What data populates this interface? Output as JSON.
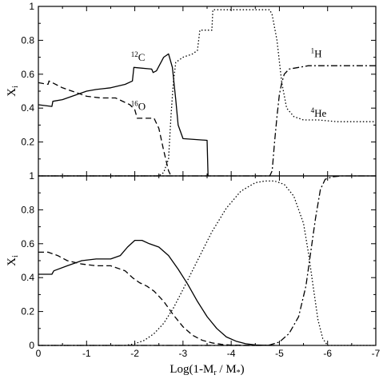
{
  "chart_data": [
    {
      "type": "line",
      "panel": "top",
      "xlim": [
        0,
        -7
      ],
      "ylim": [
        0,
        1
      ],
      "xticks": [
        0,
        -1,
        -2,
        -3,
        -4,
        -5,
        -6,
        -7
      ],
      "yticks": [
        0.2,
        0.4,
        0.6,
        0.8,
        1
      ],
      "ylabel": "X",
      "ylabel_sub": "i",
      "annotations": [
        {
          "sup": "12",
          "text": "C",
          "x": -1.92,
          "y": 0.68
        },
        {
          "sup": "16",
          "text": "O",
          "x": -1.92,
          "y": 0.39
        },
        {
          "sup": "1",
          "text": "H",
          "x": -5.65,
          "y": 0.7
        },
        {
          "sup": "4",
          "text": "He",
          "x": -5.65,
          "y": 0.35
        }
      ],
      "series": [
        {
          "style": "solid",
          "x": [
            0,
            -0.28,
            -0.3,
            -0.5,
            -0.8,
            -1.0,
            -1.2,
            -1.5,
            -1.8,
            -1.95,
            -1.98,
            -2.35,
            -2.38,
            -2.45,
            -2.6,
            -2.7,
            -2.78,
            -2.85,
            -2.9,
            -3.0,
            -3.5,
            -3.52
          ],
          "y": [
            0.42,
            0.41,
            0.44,
            0.45,
            0.48,
            0.5,
            0.51,
            0.52,
            0.54,
            0.56,
            0.64,
            0.63,
            0.61,
            0.62,
            0.7,
            0.72,
            0.64,
            0.45,
            0.3,
            0.22,
            0.21,
            0
          ]
        },
        {
          "style": "dashed",
          "x": [
            0,
            -0.2,
            -0.22,
            -0.5,
            -0.8,
            -1.0,
            -1.3,
            -1.6,
            -1.9,
            -2.0,
            -2.05,
            -2.4,
            -2.5,
            -2.6,
            -2.7,
            -2.75
          ],
          "y": [
            0.55,
            0.54,
            0.56,
            0.52,
            0.49,
            0.47,
            0.46,
            0.46,
            0.42,
            0.39,
            0.34,
            0.34,
            0.28,
            0.15,
            0.03,
            0
          ]
        },
        {
          "style": "dotted",
          "x": [
            0,
            -2.5,
            -2.6,
            -2.7,
            -2.75,
            -2.8,
            -2.85,
            -3.0,
            -3.2,
            -3.3,
            -3.35,
            -3.6,
            -3.62,
            -4.8,
            -4.85,
            -4.95,
            -5.05,
            -5.15,
            -5.3,
            -5.5,
            -5.8,
            -6.2,
            -7.0
          ],
          "y": [
            0,
            0,
            0.02,
            0.1,
            0.35,
            0.55,
            0.67,
            0.7,
            0.72,
            0.74,
            0.86,
            0.86,
            0.98,
            0.98,
            0.95,
            0.8,
            0.55,
            0.4,
            0.35,
            0.33,
            0.33,
            0.32,
            0.32
          ]
        },
        {
          "style": "dashdot",
          "x": [
            0,
            -4.8,
            -4.85,
            -4.9,
            -4.95,
            -5.0,
            -5.05,
            -5.1,
            -5.2,
            -5.4,
            -5.6,
            -6.0,
            -6.5,
            -7.0
          ],
          "y": [
            0,
            0,
            0.03,
            0.2,
            0.35,
            0.48,
            0.55,
            0.6,
            0.63,
            0.64,
            0.65,
            0.65,
            0.65,
            0.65
          ]
        }
      ]
    },
    {
      "type": "line",
      "panel": "bottom",
      "xlim": [
        0,
        -7
      ],
      "ylim": [
        0,
        1
      ],
      "xticks": [
        0,
        -1,
        -2,
        -3,
        -4,
        -5,
        -6,
        -7
      ],
      "yticks": [
        0,
        0.2,
        0.4,
        0.6,
        0.8,
        1
      ],
      "xlabel": "Log(1-M",
      "xlabel_sub1": "r",
      "xlabel_mid": " / M",
      "xlabel_sub2": "*",
      "xlabel_end": ")",
      "ylabel": "X",
      "ylabel_sub": "i",
      "series": [
        {
          "style": "solid",
          "x": [
            0,
            -0.28,
            -0.32,
            -0.6,
            -0.9,
            -1.2,
            -1.5,
            -1.7,
            -1.85,
            -2.0,
            -2.15,
            -2.3,
            -2.5,
            -2.7,
            -2.9,
            -3.1,
            -3.3,
            -3.5,
            -3.7,
            -3.9,
            -4.1,
            -4.3,
            -4.5,
            -4.7,
            -4.9
          ],
          "y": [
            0.42,
            0.42,
            0.44,
            0.47,
            0.5,
            0.51,
            0.51,
            0.53,
            0.58,
            0.62,
            0.62,
            0.6,
            0.58,
            0.53,
            0.45,
            0.36,
            0.26,
            0.17,
            0.1,
            0.05,
            0.025,
            0.01,
            0.003,
            0.001,
            0
          ]
        },
        {
          "style": "dashed",
          "x": [
            0,
            -0.2,
            -0.4,
            -0.6,
            -0.9,
            -1.2,
            -1.5,
            -1.8,
            -1.95,
            -2.1,
            -2.25,
            -2.4,
            -2.6,
            -2.8,
            -3.0,
            -3.2,
            -3.4,
            -3.6,
            -3.8,
            -4.0,
            -4.2,
            -4.5
          ],
          "y": [
            0.55,
            0.55,
            0.53,
            0.5,
            0.48,
            0.47,
            0.47,
            0.44,
            0.4,
            0.37,
            0.35,
            0.32,
            0.26,
            0.18,
            0.11,
            0.06,
            0.03,
            0.015,
            0.006,
            0.002,
            0.001,
            0
          ]
        },
        {
          "style": "dotted",
          "x": [
            0,
            -1.8,
            -2.0,
            -2.2,
            -2.4,
            -2.6,
            -2.8,
            -3.0,
            -3.3,
            -3.6,
            -3.9,
            -4.2,
            -4.5,
            -4.7,
            -4.9,
            -5.1,
            -5.3,
            -5.5,
            -5.6,
            -5.7,
            -5.8,
            -5.9,
            -6.0,
            -7.0
          ],
          "y": [
            0,
            0,
            0.01,
            0.03,
            0.07,
            0.13,
            0.22,
            0.33,
            0.5,
            0.67,
            0.81,
            0.91,
            0.96,
            0.97,
            0.97,
            0.95,
            0.88,
            0.72,
            0.55,
            0.35,
            0.15,
            0.04,
            0,
            0
          ]
        },
        {
          "style": "dashdot",
          "x": [
            0,
            -4.6,
            -4.8,
            -5.0,
            -5.2,
            -5.4,
            -5.55,
            -5.65,
            -5.75,
            -5.85,
            -5.95,
            -6.1,
            -6.3,
            -7.0
          ],
          "y": [
            0,
            0,
            0.003,
            0.02,
            0.07,
            0.17,
            0.35,
            0.55,
            0.75,
            0.92,
            0.98,
            0.995,
            1.0,
            1.0
          ]
        }
      ]
    }
  ]
}
